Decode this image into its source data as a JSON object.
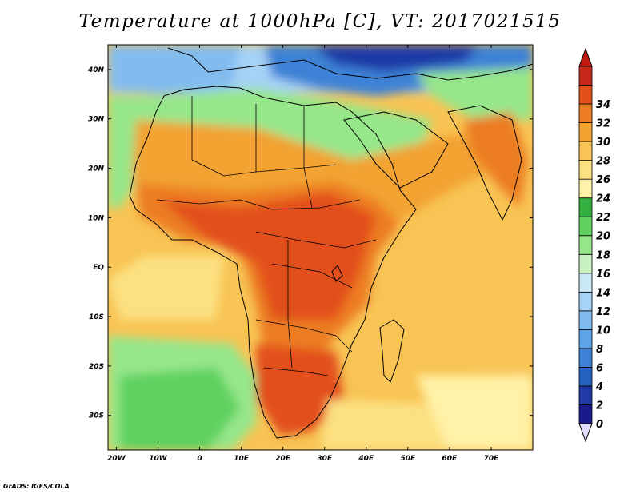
{
  "title": "Temperature at 1000hPa [C], VT: 2017021515",
  "credit": "GrADS: IGES/COLA",
  "map": {
    "lon_range": [
      -22,
      80
    ],
    "lat_range": [
      -37,
      45
    ],
    "lon_ticks": [
      {
        "value": -20,
        "label": "20W"
      },
      {
        "value": -10,
        "label": "10W"
      },
      {
        "value": 0,
        "label": "0"
      },
      {
        "value": 10,
        "label": "10E"
      },
      {
        "value": 20,
        "label": "20E"
      },
      {
        "value": 30,
        "label": "30E"
      },
      {
        "value": 40,
        "label": "40E"
      },
      {
        "value": 50,
        "label": "50E"
      },
      {
        "value": 60,
        "label": "60E"
      },
      {
        "value": 70,
        "label": "70E"
      }
    ],
    "lat_ticks": [
      {
        "value": 40,
        "label": "40N"
      },
      {
        "value": 30,
        "label": "30N"
      },
      {
        "value": 20,
        "label": "20N"
      },
      {
        "value": 10,
        "label": "10N"
      },
      {
        "value": 0,
        "label": "EQ"
      },
      {
        "value": -10,
        "label": "10S"
      },
      {
        "value": -20,
        "label": "20S"
      },
      {
        "value": -30,
        "label": "30S"
      }
    ]
  },
  "colorbar": {
    "labels": [
      "0",
      "2",
      "4",
      "6",
      "8",
      "10",
      "12",
      "14",
      "16",
      "18",
      "20",
      "22",
      "24",
      "26",
      "28",
      "30",
      "32",
      "34"
    ],
    "colors": [
      "#1a1a8c",
      "#1f3aa6",
      "#2660c0",
      "#3d82d6",
      "#5da3e8",
      "#82bcef",
      "#a6d2f5",
      "#cbe8f7",
      "#c8f0c0",
      "#96e68a",
      "#5fd160",
      "#34b040",
      "#fff2a8",
      "#fce081",
      "#f8c454",
      "#f2a332",
      "#ec7d22",
      "#e24f1a",
      "#c6281a"
    ],
    "under_color": "#e0dcff",
    "over_color": "#c01a10"
  }
}
